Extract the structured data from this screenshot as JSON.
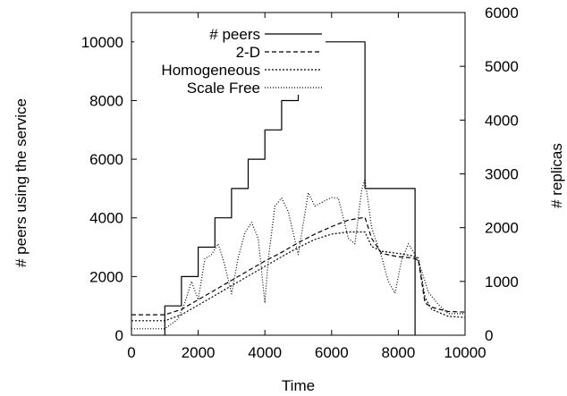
{
  "chart_data": {
    "type": "line",
    "title": "",
    "xlabel": "Time",
    "ylabel_left": "# peers using the service",
    "ylabel_right": "# replicas",
    "xlim": [
      0,
      10000
    ],
    "ylim_left": [
      0,
      11000
    ],
    "ylim_right": [
      0,
      6000
    ],
    "x_ticks": [
      "0",
      "2000",
      "4000",
      "6000",
      "8000",
      "10000"
    ],
    "y_ticks_left": [
      "0",
      "2000",
      "4000",
      "6000",
      "8000",
      "10000"
    ],
    "y_ticks_right": [
      "0",
      "1000",
      "2000",
      "3000",
      "4000",
      "5000",
      "6000"
    ],
    "grid": false,
    "legend_position": "top-center",
    "series": [
      {
        "name": "# peers",
        "axis": "left",
        "style": "solid",
        "step": true,
        "x": [
          1000,
          1000,
          1500,
          1500,
          2000,
          2000,
          2500,
          2500,
          3000,
          3000,
          3500,
          3500,
          4000,
          4000,
          4500,
          4500,
          5000,
          5000,
          5500,
          5500,
          7000,
          7000,
          8500,
          8500
        ],
        "values": [
          0,
          1000,
          1000,
          2000,
          2000,
          3000,
          3000,
          4000,
          4000,
          5000,
          5000,
          6000,
          6000,
          7000,
          7000,
          8000,
          8000,
          9000,
          9000,
          10000,
          10000,
          5000,
          5000,
          0
        ]
      },
      {
        "name": "2-D",
        "axis": "right",
        "style": "dashed",
        "x": [
          0,
          1000,
          1500,
          2000,
          2500,
          3000,
          3500,
          4000,
          4500,
          5000,
          5500,
          6000,
          6500,
          7000,
          7200,
          7500,
          8000,
          8400,
          8600,
          8800,
          9000,
          9500,
          10000
        ],
        "values": [
          380,
          380,
          480,
          660,
          840,
          1020,
          1200,
          1380,
          1540,
          1720,
          1880,
          2020,
          2140,
          2190,
          1800,
          1520,
          1460,
          1440,
          1400,
          600,
          520,
          440,
          430
        ]
      },
      {
        "name": "Homogeneous",
        "axis": "right",
        "style": "dotted",
        "x": [
          0,
          1000,
          1500,
          2000,
          2500,
          3000,
          3500,
          4000,
          4500,
          5000,
          5500,
          6000,
          6500,
          7000,
          7200,
          7500,
          8000,
          8400,
          8600,
          8800,
          9000,
          9500,
          10000
        ],
        "values": [
          270,
          270,
          380,
          560,
          740,
          920,
          1100,
          1280,
          1460,
          1630,
          1780,
          1880,
          1920,
          1920,
          1650,
          1560,
          1520,
          1480,
          1440,
          700,
          480,
          350,
          330
        ]
      },
      {
        "name": "Scale Free",
        "axis": "right",
        "style": "dotted-fine",
        "x": [
          0,
          1000,
          1400,
          1600,
          1800,
          2000,
          2200,
          2400,
          2600,
          2800,
          3000,
          3200,
          3400,
          3600,
          3800,
          4000,
          4100,
          4300,
          4500,
          4700,
          5000,
          5300,
          5500,
          5800,
          6000,
          6200,
          6500,
          6700,
          6900,
          7000,
          7200,
          7500,
          7700,
          7900,
          8100,
          8300,
          8500,
          8700,
          8900,
          9200,
          9500,
          10000
        ],
        "values": [
          120,
          120,
          300,
          600,
          1000,
          660,
          1420,
          1500,
          1700,
          1300,
          770,
          1450,
          1900,
          2100,
          1800,
          600,
          1400,
          2400,
          2550,
          2300,
          1500,
          2650,
          2400,
          2500,
          2560,
          2550,
          1800,
          1700,
          2700,
          2900,
          2000,
          1450,
          1000,
          780,
          1400,
          1700,
          1500,
          1200,
          800,
          570,
          400,
          400
        ]
      }
    ]
  }
}
